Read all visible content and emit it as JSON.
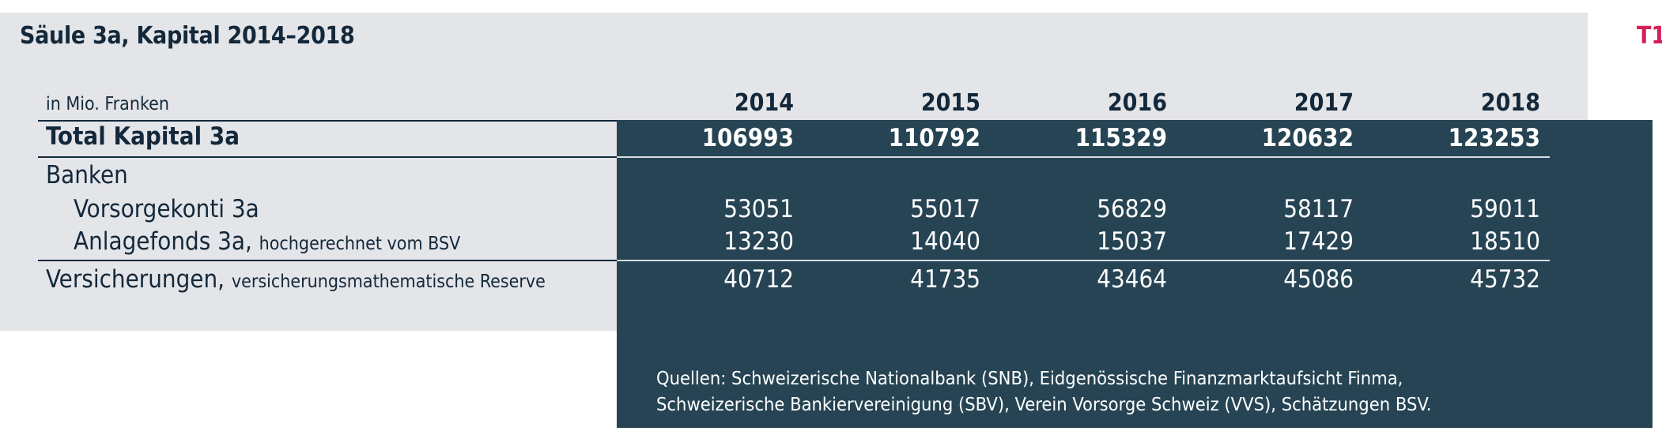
{
  "title": "Säule 3a, Kapital 2014–2018",
  "tag": "T1",
  "unit_label": "in Mio. Franken",
  "years": [
    "2014",
    "2015",
    "2016",
    "2017",
    "2018"
  ],
  "rows": [
    {
      "label": "Total Kapital 3a",
      "note": "",
      "values": [
        "106993",
        "110792",
        "115329",
        "120632",
        "123253"
      ]
    },
    {
      "label": "Banken",
      "note": "",
      "values": []
    },
    {
      "label": "Vorsorgekonti 3a",
      "note": "",
      "values": [
        "53051",
        "55017",
        "56829",
        "58117",
        "59011"
      ]
    },
    {
      "label": "Anlagefonds 3a,",
      "note": "hochgerechnet vom BSV",
      "values": [
        "13230",
        "14040",
        "15037",
        "17429",
        "18510"
      ]
    },
    {
      "label": "Versicherungen,",
      "note": "versicherungsmathematische Reserve",
      "values": [
        "40712",
        "41735",
        "43464",
        "45086",
        "45732"
      ]
    }
  ],
  "footnote": {
    "line1": "Quellen: Schweizerische Nationalbank (SNB), Eidgenössische Finanzmarktaufsicht Finma,",
    "line2": "Schweizerische Bankiervereinigung (SBV), Verein Vorsorge Schweiz (VVS), Schätzungen BSV."
  }
}
